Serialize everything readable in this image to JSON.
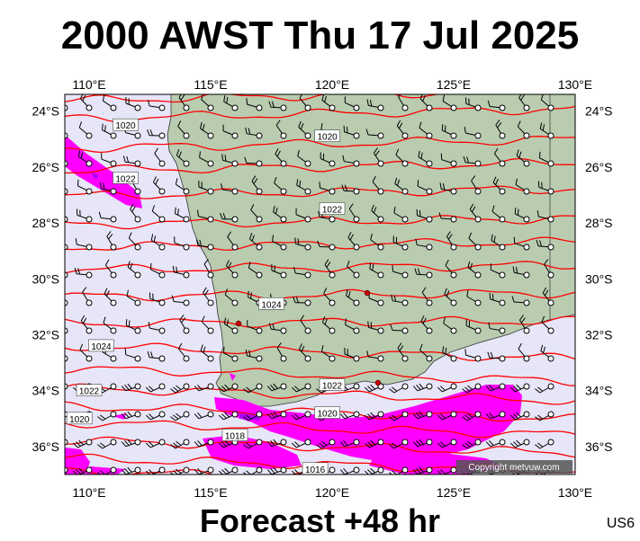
{
  "title": "2000 AWST Thu 17 Jul 2025",
  "footer": "Forecast +48 hr",
  "code": "US6",
  "copyright": "Copyright metvuw.com",
  "lon_ticks": [
    "110°E",
    "115°E",
    "120°E",
    "125°E",
    "130°E"
  ],
  "lat_ticks": [
    "24°S",
    "26°S",
    "28°S",
    "30°S",
    "32°S",
    "34°S",
    "36°S"
  ],
  "isobar_labels": [
    {
      "text": "1020",
      "lon": 111.5,
      "lat": -24.5
    },
    {
      "text": "1020",
      "lon": 119.8,
      "lat": -24.9
    },
    {
      "text": "1022",
      "lon": 111.5,
      "lat": -26.4
    },
    {
      "text": "1022",
      "lon": 120.0,
      "lat": -27.5
    },
    {
      "text": "1024",
      "lon": 117.5,
      "lat": -30.9
    },
    {
      "text": "1024",
      "lon": 110.5,
      "lat": -32.4
    },
    {
      "text": "1022",
      "lon": 110.0,
      "lat": -34.0
    },
    {
      "text": "1022",
      "lon": 120.0,
      "lat": -33.8
    },
    {
      "text": "1020",
      "lon": 109.6,
      "lat": -35.0
    },
    {
      "text": "1020",
      "lon": 119.8,
      "lat": -34.8
    },
    {
      "text": "1018",
      "lon": 116.0,
      "lat": -35.6
    },
    {
      "text": "1016",
      "lon": 119.3,
      "lat": -36.8
    }
  ],
  "colors": {
    "ocean": "#e6e6f8",
    "land": "#b9ccb0",
    "isobar": "#ff0000",
    "rain": "#ff00ff",
    "rain_heavy": "#b300ff",
    "wind": "#000000",
    "town": "#cc0000"
  }
}
